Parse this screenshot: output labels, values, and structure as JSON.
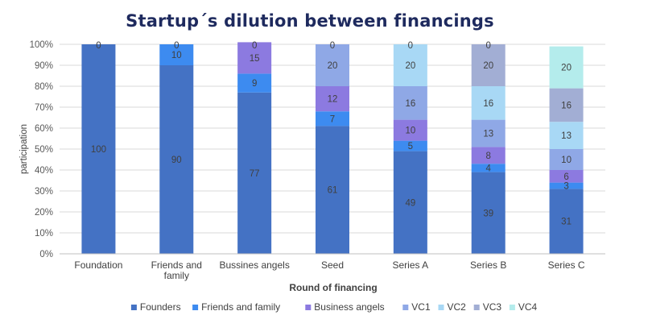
{
  "chart_data": {
    "type": "bar",
    "stacked": true,
    "title": "Startup´s dilution between financings",
    "xlabel": "Round of financing",
    "ylabel": "participation",
    "ylim": [
      0,
      100
    ],
    "y_tick_labels": [
      "0%",
      "10%",
      "20%",
      "30%",
      "40%",
      "50%",
      "60%",
      "70%",
      "80%",
      "90%",
      "100%"
    ],
    "grid": true,
    "legend_position": "bottom",
    "categories": [
      "Foundation",
      "Friends and family",
      "Bussines angels",
      "Seed",
      "Series A",
      "Series B",
      "Series C"
    ],
    "series": [
      {
        "name": "Founders",
        "color": "#4472C4",
        "values": [
          100,
          90,
          77,
          61,
          49,
          39,
          31
        ]
      },
      {
        "name": "Friends and family",
        "color": "#3D8BF0",
        "values": [
          0,
          10,
          9,
          7,
          5,
          4,
          3
        ]
      },
      {
        "name": "Business angels",
        "color": "#8C7AE0",
        "values": [
          0,
          0,
          15,
          12,
          10,
          8,
          6
        ]
      },
      {
        "name": "VC1",
        "color": "#8FA8E6",
        "values": [
          0,
          0,
          0,
          20,
          16,
          13,
          10
        ]
      },
      {
        "name": "VC2",
        "color": "#A8D8F5",
        "values": [
          0,
          0,
          0,
          0,
          20,
          16,
          13
        ]
      },
      {
        "name": "VC3",
        "color": "#A2AED4",
        "values": [
          0,
          0,
          0,
          0,
          0,
          20,
          16
        ]
      },
      {
        "name": "VC4",
        "color": "#B4ECEC",
        "values": [
          0,
          0,
          0,
          0,
          0,
          0,
          20
        ]
      }
    ],
    "top_zero_labels": [
      "0",
      "0",
      "0",
      "0",
      "0",
      "0"
    ]
  }
}
